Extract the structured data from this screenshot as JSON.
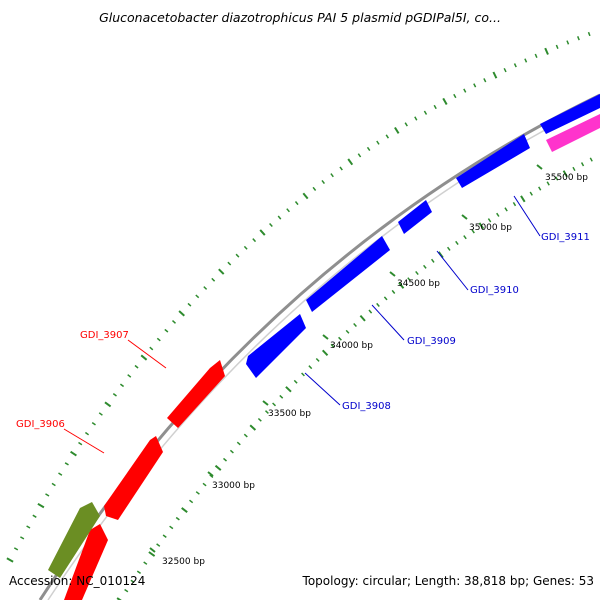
{
  "title": "Gluconacetobacter diazotrophicus PAI 5 plasmid pGDIPal5I, co...",
  "accession": "Accession: NC_010124",
  "stats": "Topology: circular; Length: 38,818 bp; Genes: 53",
  "colors": {
    "forward_gene": "#ff0000",
    "reverse_gene": "#0000ff",
    "olive_feature": "#6b8e23",
    "pink_feature": "#ff33cc",
    "backbone": "#8f8f8f",
    "tick": "#2e8b2e",
    "label_red": "#ff0000",
    "label_blue": "#0000cc"
  },
  "scale_labels": [
    "32500 bp",
    "33000 bp",
    "33500 bp",
    "34000 bp",
    "34500 bp",
    "35000 bp",
    "35500 bp"
  ],
  "gene_labels": [
    "GDI_3906",
    "GDI_3907",
    "GDI_3908",
    "GDI_3909",
    "GDI_3910",
    "GDI_3911"
  ]
}
